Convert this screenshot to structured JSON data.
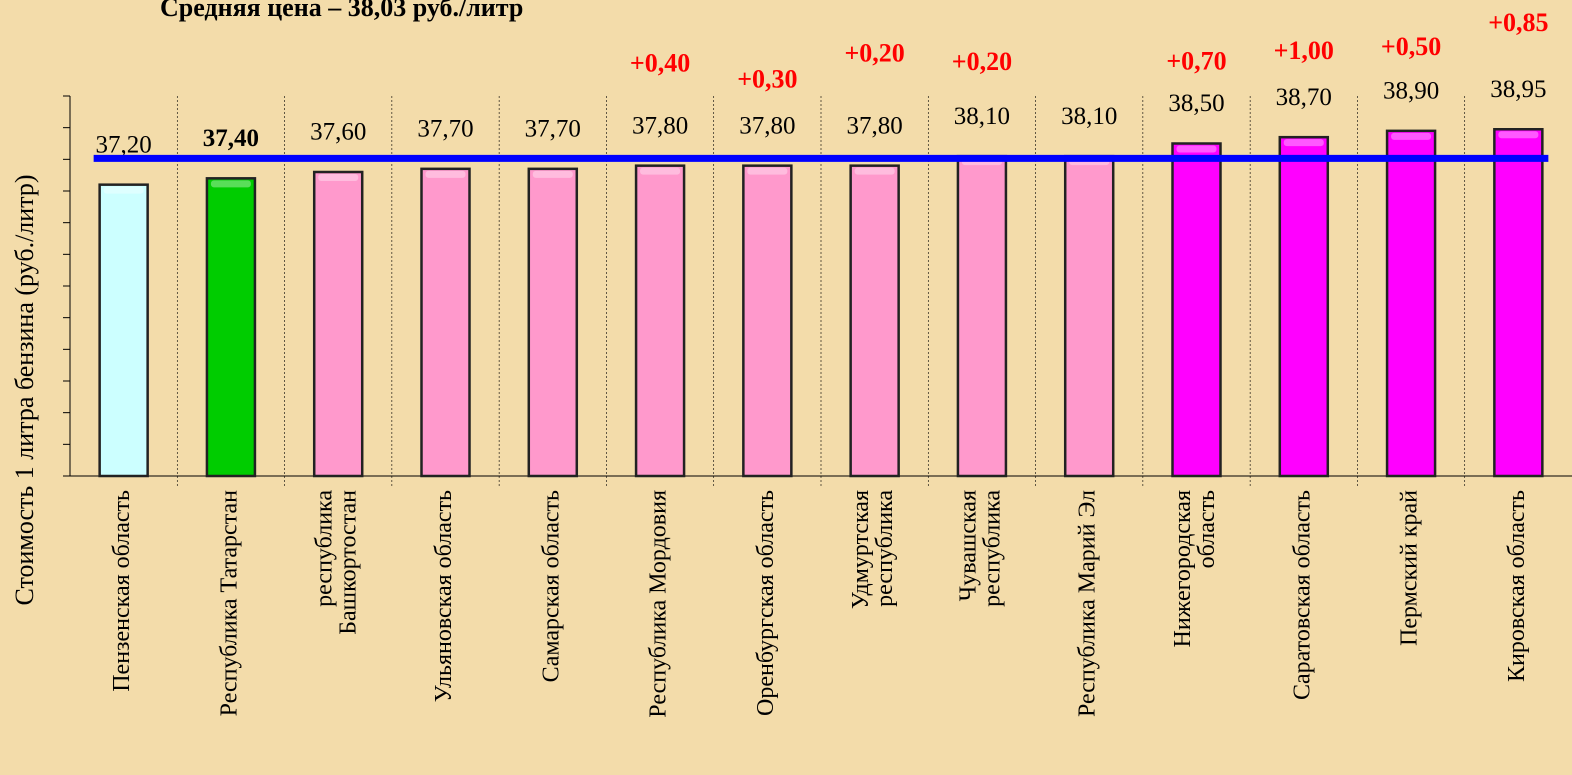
{
  "chart_data": {
    "type": "bar",
    "title": "Средняя цена – 38,03 руб./литр",
    "y_label": "Стоимость 1 литра бензина  (руб./литр)",
    "categories": [
      [
        "Пензенская область"
      ],
      [
        "Республика Татарстан"
      ],
      [
        "республика",
        "Башкортостан"
      ],
      [
        "Ульяновская область"
      ],
      [
        "Самарская область"
      ],
      [
        "Республика Мордовия"
      ],
      [
        "Оренбургская область"
      ],
      [
        "Удмуртская",
        "республика"
      ],
      [
        "Чувашская",
        "республика"
      ],
      [
        "Республика Марий Эл"
      ],
      [
        "Нижегородская",
        "область"
      ],
      [
        "Саратовская область"
      ],
      [
        "Пермский край"
      ],
      [
        "Кировская область"
      ]
    ],
    "values": [
      37.2,
      37.4,
      37.6,
      37.7,
      37.7,
      37.8,
      37.8,
      37.8,
      38.1,
      38.1,
      38.5,
      38.7,
      38.9,
      38.95
    ],
    "value_labels": [
      "37,20",
      "37,40",
      "37,60",
      "37,70",
      "37,70",
      "37,80",
      "37,80",
      "37,80",
      "38,10",
      "38,10",
      "38,50",
      "38,70",
      "38,90",
      "38,95"
    ],
    "value_label_bold": [
      false,
      true,
      false,
      false,
      false,
      false,
      false,
      false,
      false,
      false,
      false,
      false,
      false,
      false
    ],
    "colors": [
      "#ccffff",
      "#00cc00",
      "#ff99cc",
      "#ff99cc",
      "#ff99cc",
      "#ff99cc",
      "#ff99cc",
      "#ff99cc",
      "#ff99cc",
      "#ff99cc",
      "#ff00ff",
      "#ff00ff",
      "#ff00ff",
      "#ff00ff"
    ],
    "changes": [
      null,
      null,
      null,
      null,
      null,
      0.4,
      0.3,
      0.2,
      0.2,
      null,
      0.7,
      1.0,
      0.5,
      0.85
    ],
    "change_labels": [
      null,
      null,
      null,
      null,
      null,
      "+0,40",
      "+0,30",
      "+0,20",
      "+0,20",
      null,
      "+0,70",
      "+1,00",
      "+0,50",
      "+0,85"
    ],
    "change_color": "#ff0000",
    "average": 38.03,
    "average_color": "#0000ff",
    "ylim": [
      28,
      40
    ],
    "yticks": [
      28,
      29,
      30,
      31,
      32,
      33,
      34,
      35,
      36,
      37,
      38,
      39,
      40
    ]
  }
}
